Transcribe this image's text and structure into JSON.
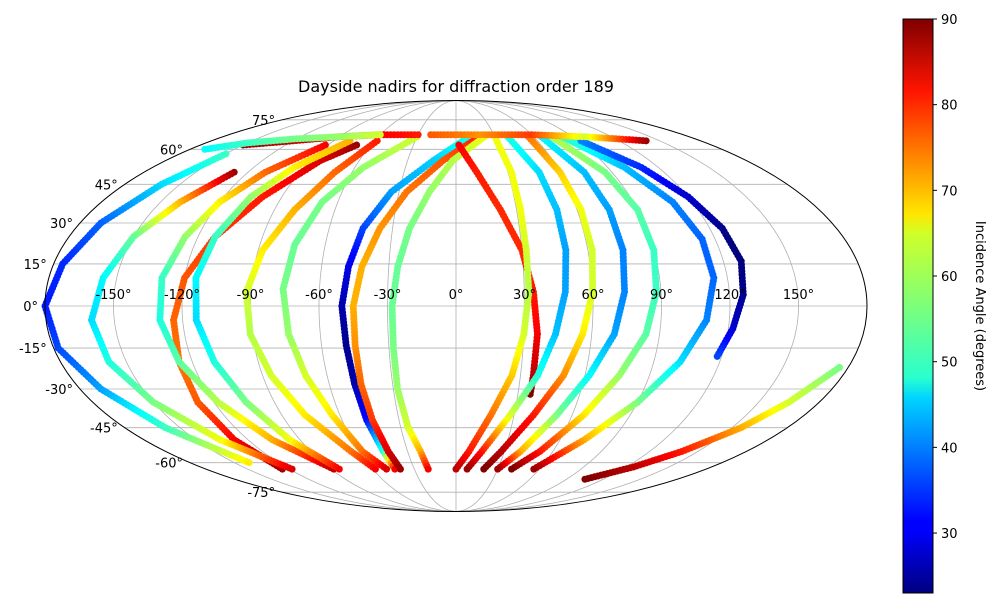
{
  "chart_data": {
    "type": "scatter",
    "projection": "mollweide",
    "title": "Dayside nadirs for diffraction order 189",
    "grid": true,
    "lon_ticks": [
      -150,
      -120,
      -90,
      -60,
      -30,
      0,
      30,
      60,
      90,
      120,
      150
    ],
    "lon_tick_labels": [
      "-150°",
      "-120°",
      "-90°",
      "-60°",
      "-30°",
      "0°",
      "30°",
      "60°",
      "90°",
      "120°",
      "150°"
    ],
    "lat_ticks": [
      -75,
      -60,
      -45,
      -30,
      -15,
      0,
      15,
      30,
      45,
      60,
      75
    ],
    "lat_tick_labels": [
      "-75°",
      "-60°",
      "-45°",
      "-30°",
      "-15°",
      "0°",
      "15°",
      "30°",
      "45°",
      "60°",
      "75°"
    ],
    "colorbar": {
      "label": "Incidence Angle (degrees)",
      "colormap": "jet",
      "range": [
        23,
        90
      ],
      "ticks": [
        30,
        40,
        50,
        60,
        70,
        80,
        90
      ],
      "tick_labels": [
        "30",
        "40",
        "50",
        "60",
        "70",
        "80",
        "90"
      ],
      "placement": "right"
    },
    "tracks": [
      {
        "lat": [
          64,
          50,
          35,
          20,
          5,
          -10,
          -25,
          -40,
          -55,
          -63
        ],
        "lon": [
          -58,
          -70,
          -80,
          -88,
          -92,
          -91,
          -86,
          -78,
          -65,
          -58
        ],
        "values": [
          80,
          75,
          70,
          66,
          62,
          60,
          62,
          66,
          74,
          82
        ]
      },
      {
        "lat": [
          -63,
          -50,
          -35,
          -20,
          -5,
          10,
          25,
          40,
          55,
          62
        ],
        "lon": [
          -125,
          -128,
          -128,
          -126,
          -124,
          -120,
          -112,
          -100,
          -84,
          -70
        ],
        "values": [
          88,
          82,
          76,
          74,
          75,
          76,
          78,
          80,
          84,
          88
        ]
      },
      {
        "lat": [
          50,
          38,
          25,
          10,
          -5,
          -20,
          -35,
          -50,
          -63
        ],
        "lon": [
          -128,
          -140,
          -150,
          -156,
          -160,
          -158,
          -150,
          -136,
          -118
        ],
        "values": [
          88,
          70,
          55,
          48,
          46,
          50,
          56,
          64,
          84
        ]
      },
      {
        "lat": [
          58,
          45,
          30,
          15,
          0,
          -15,
          -30,
          -45,
          -60
        ],
        "lon": [
          -150,
          -160,
          -170,
          -176,
          -180,
          -178,
          -170,
          -158,
          -140
        ],
        "values": [
          52,
          46,
          38,
          34,
          33,
          36,
          42,
          52,
          66
        ]
      },
      {
        "lat": [
          62,
          50,
          38,
          25,
          10,
          -5,
          -20,
          -35,
          -50,
          -63
        ],
        "lon": [
          -92,
          -110,
          -120,
          -126,
          -130,
          -130,
          -126,
          -118,
          -106,
          -88
        ],
        "values": [
          82,
          75,
          66,
          58,
          52,
          50,
          54,
          60,
          70,
          86
        ]
      },
      {
        "lat": [
          64,
          52,
          40,
          25,
          10,
          -5,
          -20,
          -35,
          -50,
          -63
        ],
        "lon": [
          -78,
          -96,
          -106,
          -112,
          -115,
          -114,
          -110,
          -104,
          -96,
          -84
        ],
        "values": [
          70,
          66,
          58,
          52,
          48,
          46,
          50,
          56,
          64,
          82
        ]
      },
      {
        "lat": [
          66,
          52,
          38,
          22,
          6,
          -10,
          -25,
          -40,
          -55,
          -63
        ],
        "lon": [
          -30,
          -55,
          -68,
          -74,
          -76,
          -74,
          -70,
          -64,
          -58,
          -50
        ],
        "values": [
          62,
          58,
          56,
          55,
          56,
          58,
          62,
          66,
          74,
          84
        ]
      },
      {
        "lat": [
          66,
          55,
          42,
          28,
          14,
          0,
          -14,
          -28,
          -42,
          -55,
          -63
        ],
        "lon": [
          10,
          -14,
          -34,
          -44,
          -48,
          -50,
          -49,
          -48,
          -47,
          -45,
          -44
        ],
        "values": [
          50,
          45,
          42,
          36,
          30,
          26,
          24,
          26,
          32,
          50,
          82
        ]
      },
      {
        "lat": [
          66,
          55,
          42,
          28,
          14,
          0,
          -14,
          -28,
          -42,
          -55,
          -63
        ],
        "lon": [
          18,
          -8,
          -26,
          -36,
          -42,
          -45,
          -45,
          -45,
          -44,
          -42,
          -40
        ],
        "values": [
          80,
          76,
          74,
          72,
          70,
          70,
          72,
          75,
          78,
          84,
          88
        ]
      },
      {
        "lat": [
          66,
          55,
          42,
          28,
          14,
          0,
          -15,
          -30,
          -45,
          -55,
          -63
        ],
        "lon": [
          22,
          -2,
          -14,
          -22,
          -26,
          -28,
          -28,
          -28,
          -26,
          -22,
          -20
        ],
        "values": [
          64,
          60,
          58,
          56,
          55,
          55,
          56,
          58,
          62,
          70,
          82
        ]
      },
      {
        "lat": [
          62,
          50,
          35,
          20,
          5,
          -10,
          -25,
          -32
        ],
        "lon": [
          2,
          12,
          22,
          30,
          34,
          36,
          36,
          36
        ],
        "values": [
          82,
          80,
          79,
          79,
          80,
          82,
          86,
          90
        ]
      },
      {
        "lat": [
          66,
          50,
          35,
          20,
          5,
          -10,
          -25,
          -40,
          -55,
          -63
        ],
        "lon": [
          30,
          32,
          32,
          32,
          32,
          30,
          26,
          18,
          8,
          0
        ],
        "values": [
          64,
          64,
          64,
          62,
          60,
          62,
          68,
          74,
          80,
          86
        ]
      },
      {
        "lat": [
          66,
          50,
          35,
          20,
          5,
          -10,
          -25,
          -40,
          -55,
          -63
        ],
        "lon": [
          40,
          48,
          50,
          50,
          48,
          44,
          38,
          28,
          16,
          8
        ],
        "values": [
          50,
          46,
          44,
          42,
          42,
          44,
          50,
          62,
          80,
          88
        ]
      },
      {
        "lat": [
          66,
          50,
          35,
          20,
          5,
          -10,
          -25,
          -40,
          -55,
          -63
        ],
        "lon": [
          56,
          60,
          62,
          62,
          60,
          56,
          50,
          40,
          28,
          20
        ],
        "values": [
          74,
          68,
          64,
          62,
          62,
          66,
          72,
          80,
          86,
          90
        ]
      },
      {
        "lat": [
          66,
          50,
          35,
          20,
          5,
          -10,
          -25,
          -40,
          -55,
          -63
        ],
        "lon": [
          66,
          74,
          76,
          76,
          74,
          70,
          62,
          52,
          40,
          30
        ],
        "values": [
          48,
          44,
          42,
          40,
          40,
          42,
          48,
          56,
          70,
          88
        ]
      },
      {
        "lat": [
          66,
          50,
          35,
          20,
          5,
          -10,
          -25,
          -40,
          -55,
          -63
        ],
        "lon": [
          74,
          86,
          90,
          90,
          88,
          84,
          76,
          66,
          52,
          40
        ],
        "values": [
          60,
          56,
          54,
          52,
          52,
          54,
          58,
          66,
          80,
          90
        ]
      },
      {
        "lat": [
          66,
          52,
          38,
          24,
          10,
          -5,
          -20,
          -35,
          -50,
          -63
        ],
        "lon": [
          82,
          100,
          110,
          114,
          114,
          110,
          102,
          90,
          74,
          56
        ],
        "values": [
          52,
          44,
          40,
          38,
          38,
          40,
          46,
          56,
          70,
          88
        ]
      },
      {
        "lat": [
          64,
          52,
          40,
          28,
          16,
          4,
          -8,
          -18
        ],
        "lon": [
          92,
          110,
          120,
          126,
          128,
          126,
          122,
          118
        ],
        "values": [
          40,
          34,
          28,
          24,
          22,
          24,
          28,
          36
        ]
      },
      {
        "lat": [
          -22,
          -35,
          -45,
          -55,
          -62,
          -68
        ],
        "lon": [
          176,
          165,
          155,
          140,
          125,
          105
        ],
        "values": [
          56,
          62,
          70,
          80,
          86,
          90
        ]
      },
      {
        "lat": [
          62,
          64,
          66,
          67,
          67
        ],
        "lon": [
          -150,
          -120,
          -90,
          -60,
          -30
        ],
        "values": [
          88,
          86,
          84,
          82,
          80
        ]
      },
      {
        "lat": [
          60,
          63,
          65,
          66,
          67
        ],
        "lon": [
          -170,
          -150,
          -120,
          -90,
          -60
        ],
        "values": [
          48,
          52,
          56,
          58,
          62
        ]
      },
      {
        "lat": [
          67,
          67,
          67,
          66,
          64
        ],
        "lon": [
          -20,
          20,
          60,
          100,
          140
        ],
        "values": [
          76,
          72,
          78,
          62,
          88
        ]
      }
    ]
  }
}
